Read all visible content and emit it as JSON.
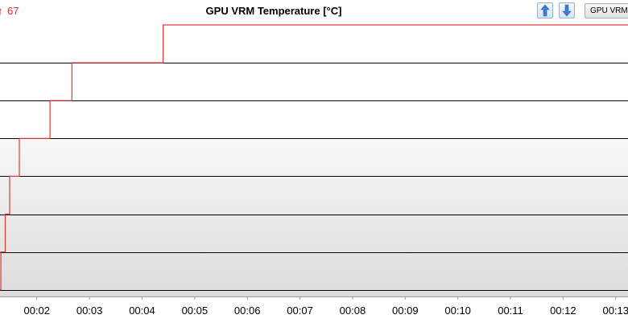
{
  "header": {
    "current_arrow": "↑",
    "current_value": "67",
    "title": "GPU VRM Temperature [°C]",
    "sensor_select_value": "GPU VRM T"
  },
  "icons": {
    "move_up": "arrow-up-icon",
    "move_down": "arrow-down-icon"
  },
  "colors": {
    "series": "#e53935",
    "grid": "#000000",
    "readout": "#d32f2f"
  },
  "chart_data": {
    "type": "line",
    "title": "GPU VRM Temperature [°C]",
    "x_ticks": [
      "00:02",
      "00:03",
      "00:04",
      "00:05",
      "00:06",
      "00:07",
      "00:08",
      "00:09",
      "00:10",
      "00:11",
      "00:12",
      "00:13"
    ],
    "xlim_seconds": [
      78,
      794
    ],
    "ylim": [
      59,
      67
    ],
    "grid": "horizontal",
    "series": [
      {
        "step": true,
        "points": [
          {
            "t": 78,
            "v": 60.0
          },
          {
            "t": 79,
            "v": 61.0
          },
          {
            "t": 84,
            "v": 62.0
          },
          {
            "t": 89,
            "v": 63.0
          },
          {
            "t": 100,
            "v": 64.0
          },
          {
            "t": 135,
            "v": 65.0
          },
          {
            "t": 160,
            "v": 66.0
          },
          {
            "t": 264,
            "v": 67.0
          },
          {
            "t": 794,
            "v": 67.0
          }
        ]
      }
    ]
  }
}
